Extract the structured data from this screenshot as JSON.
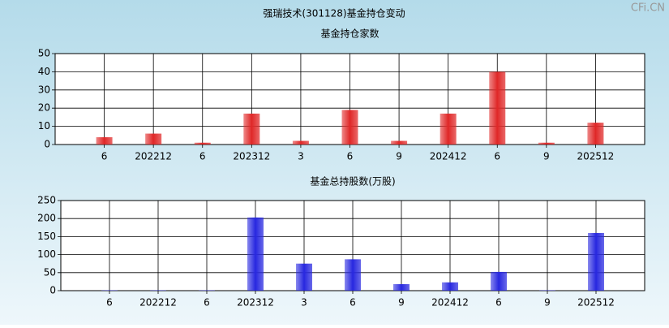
{
  "title": "强瑞技术(301128)基金持仓变动",
  "watermark": "CFi.CN",
  "chart_data": [
    {
      "type": "bar",
      "title": "基金持仓家数",
      "categories": [
        "6",
        "202212",
        "6",
        "202312",
        "3",
        "6",
        "9",
        "202412",
        "6",
        "9",
        "202512"
      ],
      "values": [
        4,
        6,
        1,
        17,
        2,
        19,
        2,
        17,
        40,
        1,
        12
      ],
      "color": "#e02828",
      "ylim": [
        0,
        50
      ],
      "yticks": [
        0,
        10,
        20,
        30,
        40,
        50
      ],
      "grid": true
    },
    {
      "type": "bar",
      "title": "基金总持股数(万股)",
      "categories": [
        "6",
        "202212",
        "6",
        "202312",
        "3",
        "6",
        "9",
        "202412",
        "6",
        "9",
        "202512"
      ],
      "values": [
        1,
        1,
        1,
        203,
        75,
        87,
        18,
        23,
        52,
        1,
        160
      ],
      "color": "#2828e0",
      "ylim": [
        0,
        250
      ],
      "yticks": [
        0,
        50,
        100,
        150,
        200,
        250
      ],
      "grid": true
    }
  ]
}
